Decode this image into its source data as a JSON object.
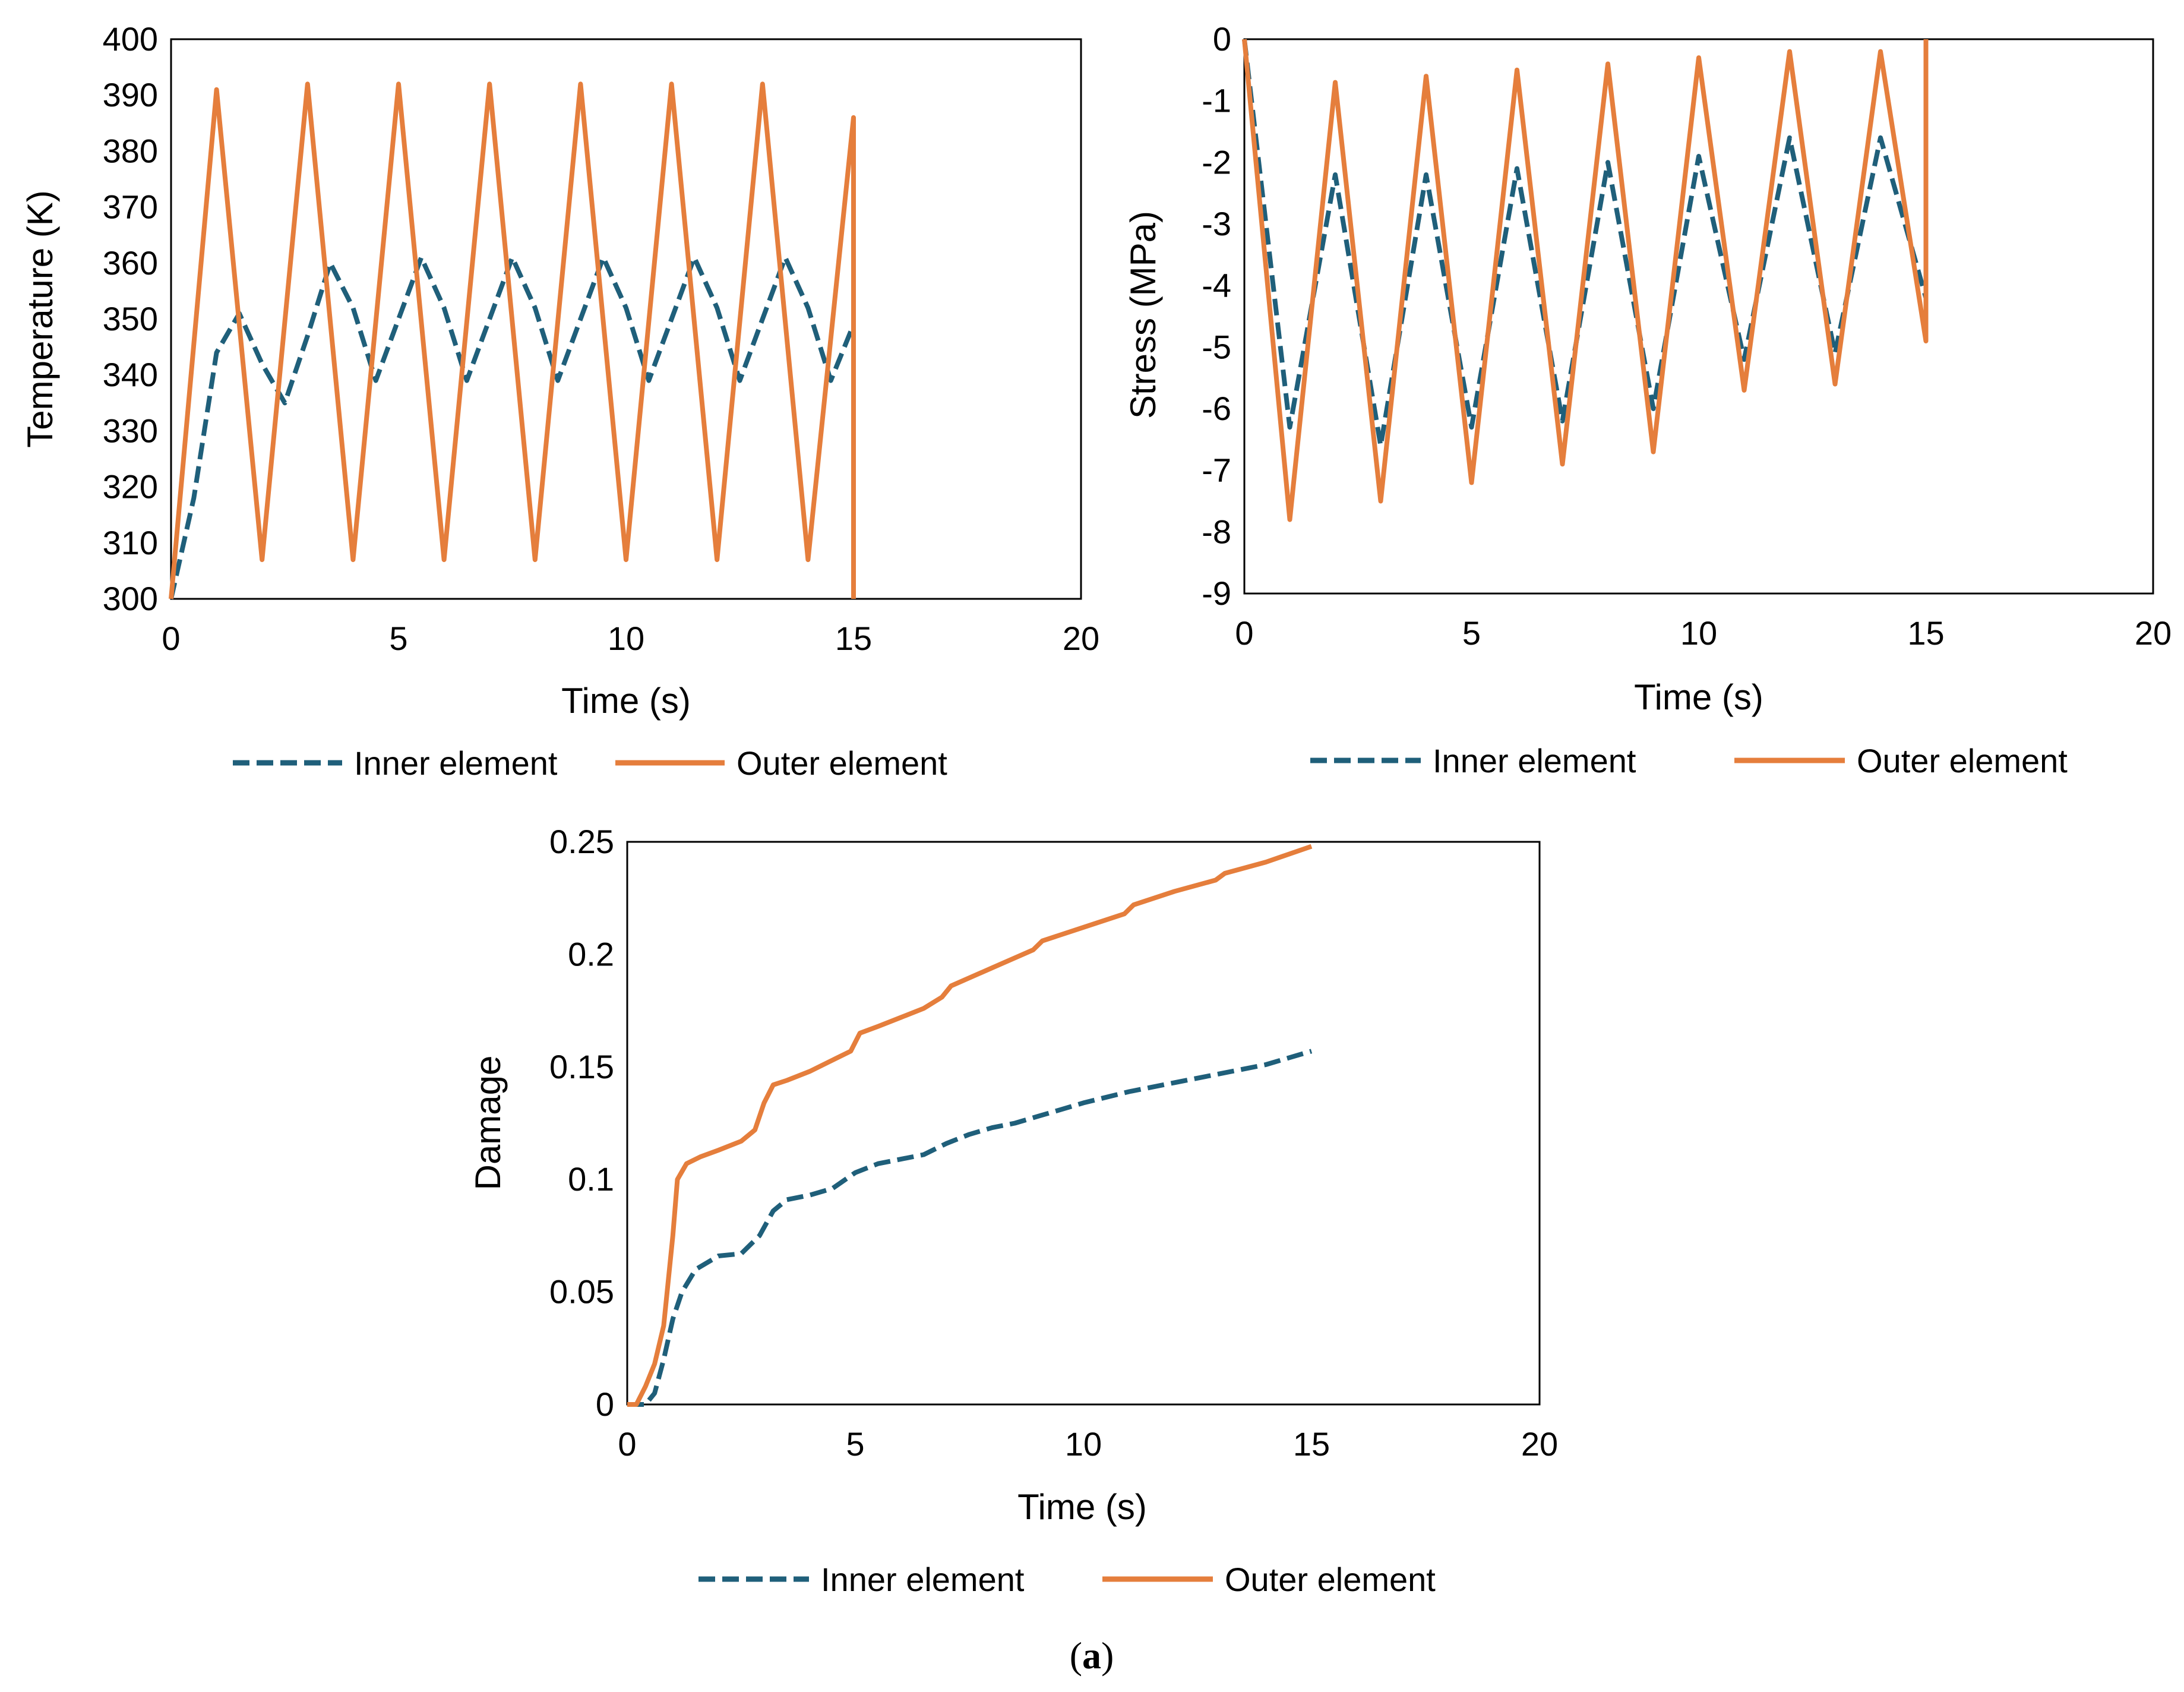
{
  "caption": {
    "open": "(",
    "letter": "a",
    "close": ")"
  },
  "colors": {
    "inner": "#1f5f7a",
    "outer": "#e57e3c",
    "axis": "#000000"
  },
  "chart_data": [
    {
      "id": "temperature",
      "type": "line",
      "xlabel": "Time (s)",
      "ylabel": "Temperature (K)",
      "xlim": [
        0,
        20
      ],
      "ylim": [
        300,
        400
      ],
      "xticks": [
        0,
        5,
        10,
        15,
        20
      ],
      "yticks": [
        300,
        310,
        320,
        330,
        340,
        350,
        360,
        370,
        380,
        390,
        400
      ],
      "grid": false,
      "legend": "bottom",
      "series": [
        {
          "name": "Inner element",
          "style": "dashed",
          "color": "#1f5f7a",
          "x": [
            0,
            0.5,
            1.0,
            1.5,
            2.0,
            2.5,
            3.0,
            3.5,
            4.0,
            4.5,
            5.0,
            5.5,
            6.0,
            6.5,
            7.0,
            7.5,
            8.0,
            8.5,
            9.0,
            9.5,
            10.0,
            10.5,
            11.0,
            11.5,
            12.0,
            12.5,
            13.0,
            13.5,
            14.0,
            14.5,
            15.0
          ],
          "y": [
            300,
            318,
            344,
            351,
            342,
            335,
            347,
            360,
            352,
            339,
            350,
            361,
            352,
            339,
            350,
            361,
            352,
            339,
            350,
            361,
            352,
            339,
            350,
            361,
            352,
            339,
            350,
            361,
            352,
            339,
            349
          ]
        },
        {
          "name": "Outer element",
          "style": "solid",
          "color": "#e57e3c",
          "x": [
            0,
            1,
            2,
            3,
            4,
            5,
            6,
            7,
            8,
            9,
            10,
            11,
            12,
            13,
            14,
            15,
            15
          ],
          "y": [
            300,
            391,
            307,
            392,
            307,
            392,
            307,
            392,
            307,
            392,
            307,
            392,
            307,
            392,
            307,
            386,
            300
          ]
        }
      ]
    },
    {
      "id": "stress",
      "type": "line",
      "xlabel": "Time (s)",
      "ylabel": "Stress (MPa)",
      "xlim": [
        0,
        20
      ],
      "ylim": [
        -9,
        0
      ],
      "xticks": [
        0,
        5,
        10,
        15,
        20
      ],
      "yticks": [
        0,
        -1,
        -2,
        -3,
        -4,
        -5,
        -6,
        -7,
        -8,
        -9
      ],
      "grid": false,
      "legend": "bottom",
      "series": [
        {
          "name": "Inner element",
          "style": "dashed",
          "color": "#1f5f7a",
          "x": [
            0,
            1,
            2,
            3,
            4,
            5,
            6,
            7,
            8,
            9,
            10,
            11,
            12,
            13,
            14,
            15
          ],
          "y": [
            0,
            -6.3,
            -2.2,
            -6.6,
            -2.2,
            -6.3,
            -2.1,
            -6.2,
            -2.0,
            -6.0,
            -1.9,
            -5.2,
            -1.6,
            -5.1,
            -1.6,
            -4.2
          ]
        },
        {
          "name": "Outer element",
          "style": "solid",
          "color": "#e57e3c",
          "x": [
            0,
            1,
            2,
            3,
            4,
            5,
            6,
            7,
            8,
            9,
            10,
            11,
            12,
            13,
            14,
            15,
            15
          ],
          "y": [
            0,
            -7.8,
            -0.7,
            -7.5,
            -0.6,
            -7.2,
            -0.5,
            -6.9,
            -0.4,
            -6.7,
            -0.3,
            -5.7,
            -0.2,
            -5.6,
            -0.2,
            -4.9,
            0
          ]
        }
      ]
    },
    {
      "id": "damage",
      "type": "line",
      "xlabel": "Time (s)",
      "ylabel": "Damage",
      "xlim": [
        0,
        20
      ],
      "ylim": [
        0,
        0.25
      ],
      "xticks": [
        0,
        5,
        10,
        15,
        20
      ],
      "yticks": [
        0,
        0.05,
        0.1,
        0.15,
        0.2,
        0.25
      ],
      "ytick_labels": [
        "0",
        "0.05",
        "0.1",
        "0.15",
        "0.2",
        "0.25"
      ],
      "grid": false,
      "legend": "bottom",
      "series": [
        {
          "name": "Inner element",
          "style": "dashed",
          "color": "#1f5f7a",
          "x": [
            0,
            0.4,
            0.6,
            0.8,
            1.0,
            1.2,
            1.5,
            2.0,
            2.5,
            2.9,
            3.2,
            3.5,
            4.0,
            4.5,
            5.0,
            5.5,
            6.0,
            6.5,
            7.0,
            7.5,
            8.0,
            8.5,
            9.0,
            9.5,
            10.0,
            11.0,
            12.0,
            13.0,
            14.0,
            15.0
          ],
          "y": [
            0,
            0,
            0.005,
            0.02,
            0.038,
            0.05,
            0.06,
            0.066,
            0.067,
            0.075,
            0.086,
            0.091,
            0.093,
            0.096,
            0.103,
            0.107,
            0.109,
            0.111,
            0.116,
            0.12,
            0.123,
            0.125,
            0.128,
            0.131,
            0.134,
            0.139,
            0.143,
            0.147,
            0.151,
            0.157
          ]
        },
        {
          "name": "Outer element",
          "style": "solid",
          "color": "#e57e3c",
          "x": [
            0,
            0.2,
            0.4,
            0.6,
            0.8,
            1.0,
            1.1,
            1.3,
            1.6,
            2.0,
            2.5,
            2.8,
            3.0,
            3.2,
            3.5,
            4.0,
            4.5,
            4.9,
            5.1,
            5.5,
            6.0,
            6.5,
            6.9,
            7.1,
            8.0,
            8.9,
            9.1,
            10.0,
            10.9,
            11.1,
            12.0,
            12.9,
            13.1,
            14.0,
            15.0
          ],
          "y": [
            0,
            0,
            0.008,
            0.018,
            0.035,
            0.075,
            0.1,
            0.107,
            0.11,
            0.113,
            0.117,
            0.122,
            0.134,
            0.142,
            0.144,
            0.148,
            0.153,
            0.157,
            0.165,
            0.168,
            0.172,
            0.176,
            0.181,
            0.186,
            0.194,
            0.202,
            0.206,
            0.212,
            0.218,
            0.222,
            0.228,
            0.233,
            0.236,
            0.241,
            0.248
          ]
        }
      ]
    }
  ]
}
